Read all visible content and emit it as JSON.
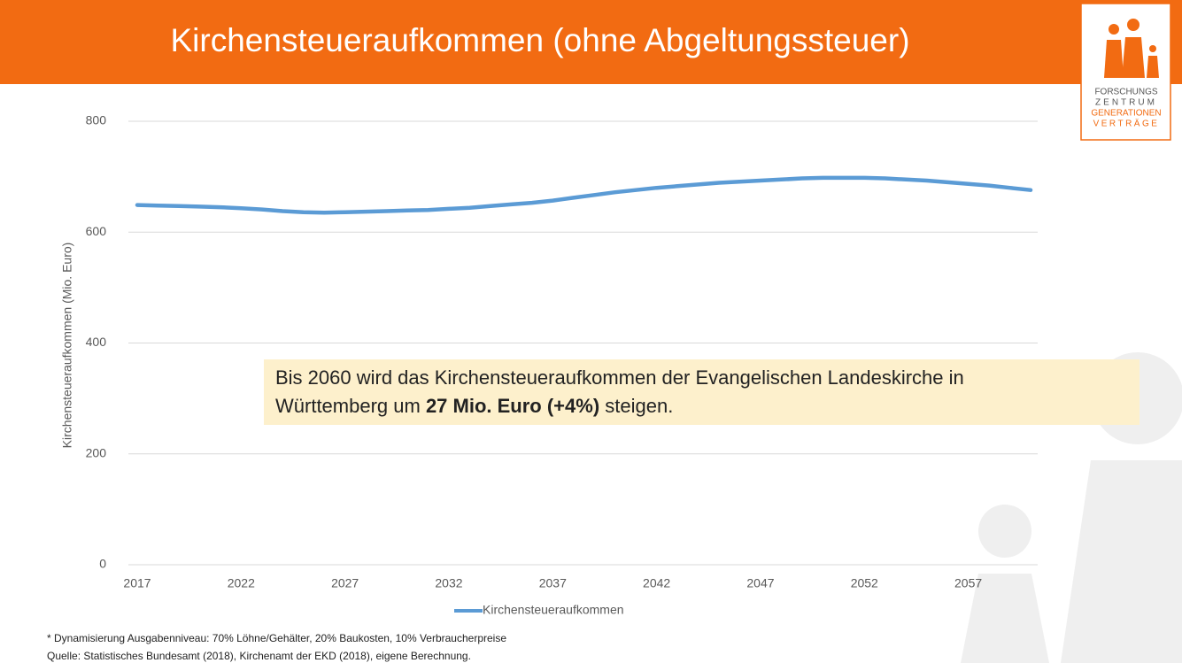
{
  "chart_data": {
    "type": "line",
    "title": "Kirchensteueraufkommen (ohne Abgeltungssteuer)",
    "ylabel": "Kirchensteueraufkommen (Mio. Euro)",
    "x": [
      2017,
      2018,
      2019,
      2020,
      2021,
      2022,
      2023,
      2024,
      2025,
      2026,
      2027,
      2028,
      2029,
      2030,
      2031,
      2032,
      2033,
      2034,
      2035,
      2036,
      2037,
      2038,
      2039,
      2040,
      2041,
      2042,
      2043,
      2044,
      2045,
      2046,
      2047,
      2048,
      2049,
      2050,
      2051,
      2052,
      2053,
      2054,
      2055,
      2056,
      2057,
      2058,
      2059,
      2060
    ],
    "series": [
      {
        "name": "Kirchensteueraufkommen",
        "color": "#5b9bd5",
        "values": [
          649,
          648,
          647,
          646,
          645,
          643,
          641,
          638,
          636,
          635,
          636,
          637,
          638,
          639,
          640,
          642,
          644,
          647,
          650,
          653,
          657,
          662,
          667,
          672,
          676,
          680,
          683,
          686,
          689,
          691,
          693,
          695,
          697,
          698,
          698,
          698,
          697,
          695,
          693,
          690,
          687,
          684,
          680,
          676
        ]
      }
    ],
    "xlim": [
      2017,
      2060
    ],
    "xticks": [
      2017,
      2022,
      2027,
      2032,
      2037,
      2042,
      2047,
      2052,
      2057
    ],
    "ylim": [
      0,
      800
    ],
    "yticks": [
      0,
      200,
      400,
      600,
      800
    ],
    "grid": true,
    "legend": "bottom",
    "annotation": {
      "lines": [
        [
          {
            "text": "Bis 2060 wird das Kirchensteueraufkommen der Evangelischen Landeskirche in",
            "bold": false
          }
        ],
        [
          {
            "text": "Württemberg um ",
            "bold": false
          },
          {
            "text": "27 Mio. Euro (+4%)",
            "bold": true
          },
          {
            "text": " steigen.",
            "bold": false
          }
        ]
      ]
    },
    "footnotes": [
      "* Dynamisierung Ausgabenniveau: 70% Löhne/Gehälter, 20% Baukosten, 10% Verbraucherpreise",
      "Quelle: Statistisches Bundesamt (2018), Kirchenamt der EKD (2018), eigene Berechnung."
    ],
    "logo": {
      "lines": [
        "FORSCHUNGS",
        "ZENTRUM",
        "GENERATIONEN",
        "VERTRÄGE"
      ]
    }
  }
}
